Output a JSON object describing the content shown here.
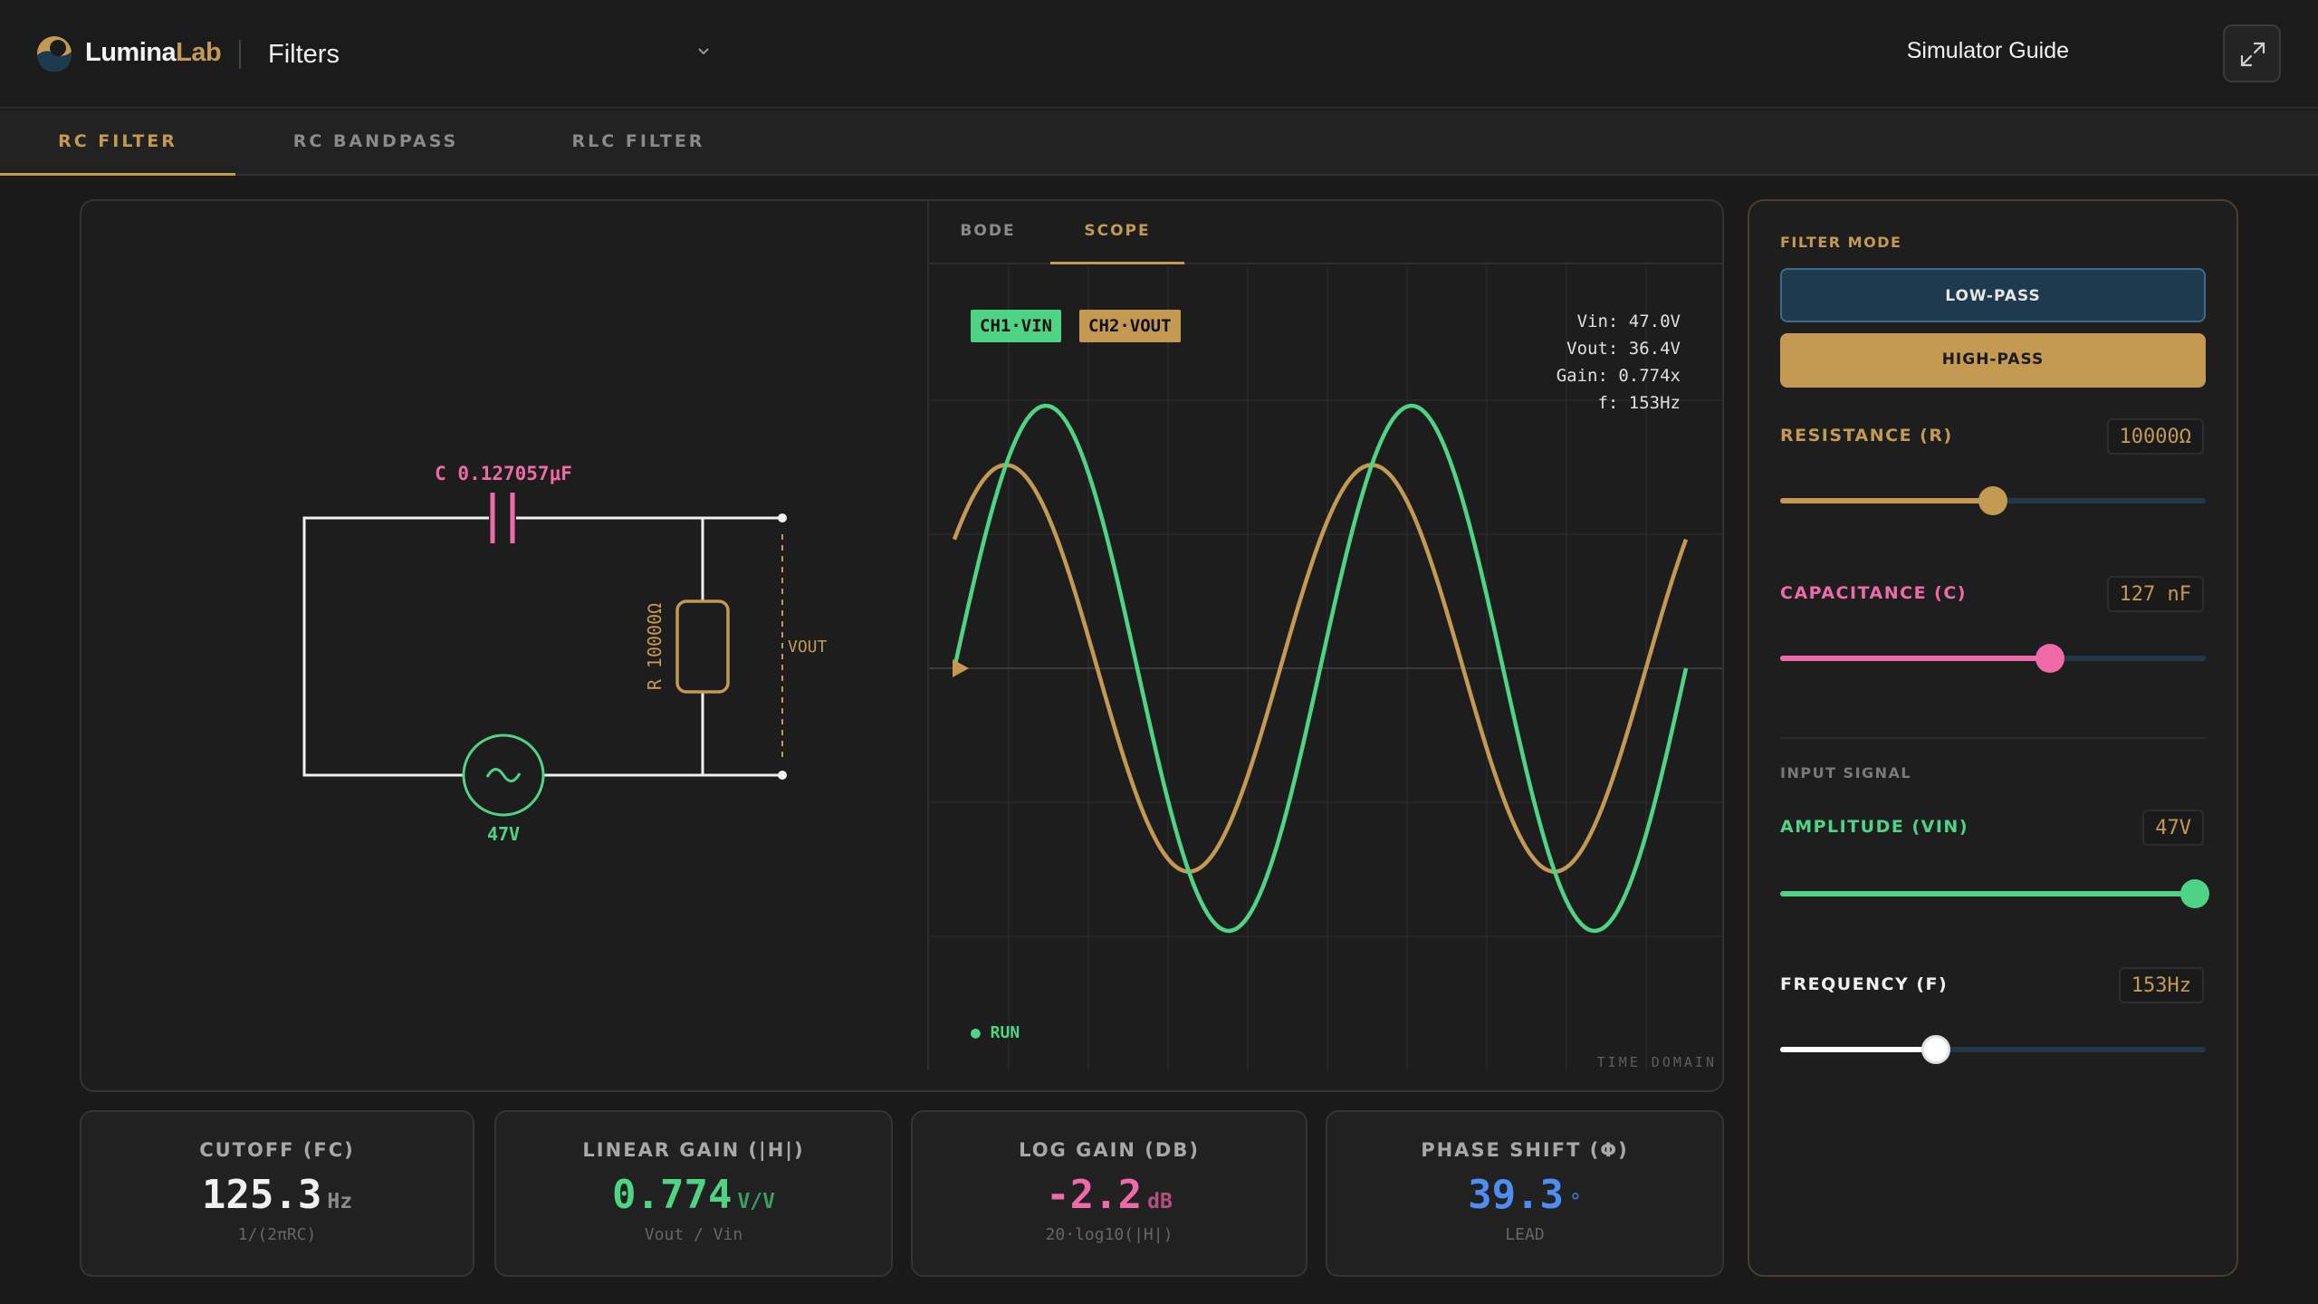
{
  "header": {
    "brand_main": "Lumina",
    "brand_accent": "Lab",
    "page_select": "Filters",
    "guide_link": "Simulator Guide"
  },
  "tabs": [
    {
      "label": "RC FILTER",
      "active": true
    },
    {
      "label": "RC BANDPASS",
      "active": false
    },
    {
      "label": "RLC FILTER",
      "active": false
    }
  ],
  "circuit": {
    "capacitor_label": "C 0.127057μF",
    "resistor_label": "R 10000Ω",
    "vout_label": "VOUT",
    "source_label": "47V"
  },
  "scope": {
    "view_tabs": [
      {
        "label": "BODE",
        "active": false
      },
      {
        "label": "SCOPE",
        "active": true
      }
    ],
    "ch1": "CH1·VIN",
    "ch2": "CH2·VOUT",
    "readouts": [
      "Vin: 47.0V",
      "Vout: 36.4V",
      "Gain: 0.774x",
      "f: 153Hz"
    ],
    "run": "● RUN",
    "domain": "TIME DOMAIN",
    "colors": {
      "vin": "#4fd485",
      "vout": "#c49a52"
    }
  },
  "metrics": [
    {
      "title": "CUTOFF (FC)",
      "value": "125.3",
      "unit": "Hz",
      "sub": "1/(2πRC)",
      "color": "#f0f0f0"
    },
    {
      "title": "LINEAR GAIN (|H|)",
      "value": "0.774",
      "unit": "V/V",
      "sub": "Vout / Vin",
      "color": "#4fd485"
    },
    {
      "title": "LOG GAIN (DB)",
      "value": "-2.2",
      "unit": "dB",
      "sub": "20·log10(|H|)",
      "color": "#ef6aa8"
    },
    {
      "title": "PHASE SHIFT (Φ)",
      "value": "39.3",
      "unit": "°",
      "sub": "LEAD",
      "color": "#4d8ef0"
    }
  ],
  "controls": {
    "filter_mode_label": "FILTER MODE",
    "modes": [
      "LOW-PASS",
      "HIGH-PASS"
    ],
    "selected_mode": "HIGH-PASS",
    "resistance": {
      "label": "RESISTANCE (R)",
      "value": "10000Ω",
      "fraction": 0.5,
      "color": "#c49a52"
    },
    "capacitance": {
      "label": "CAPACITANCE (C)",
      "value": "127 nF",
      "fraction": 0.635,
      "color": "#ef6aa8"
    },
    "input_signal_label": "INPUT SIGNAL",
    "amplitude": {
      "label": "AMPLITUDE (VIN)",
      "value": "47V",
      "fraction": 0.975,
      "color": "#4fd485"
    },
    "frequency": {
      "label": "FREQUENCY (F)",
      "value": "153Hz",
      "fraction": 0.365,
      "color": "#ffffff"
    }
  }
}
